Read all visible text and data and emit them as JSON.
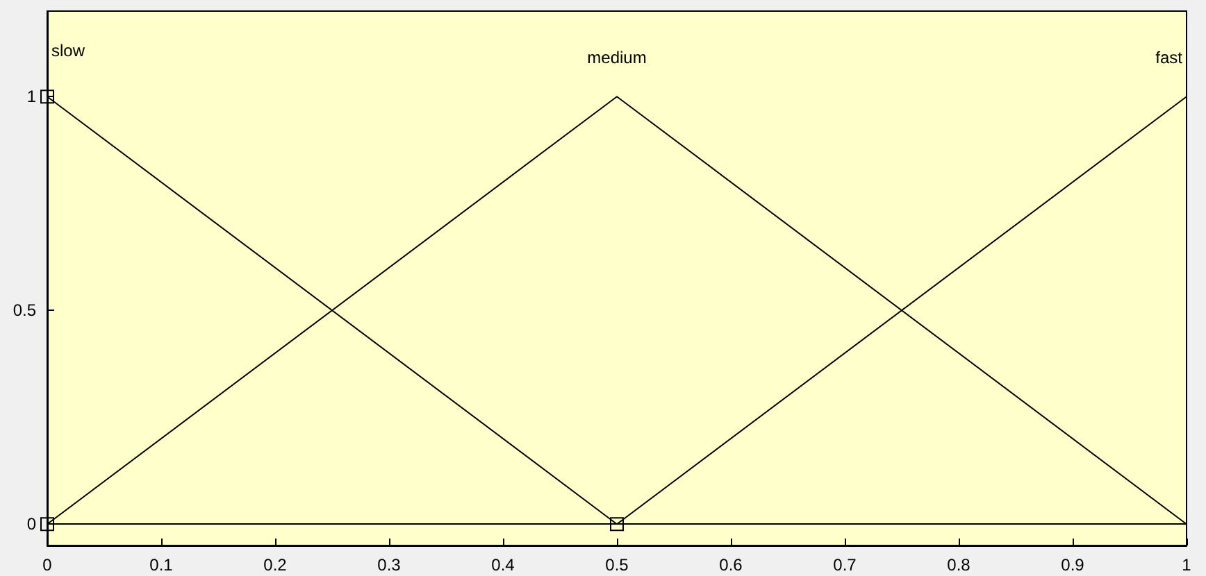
{
  "chart_data": {
    "type": "line",
    "xlim": [
      0,
      1
    ],
    "ylim": [
      -0.05,
      1.2
    ],
    "xticks": [
      0,
      0.1,
      0.2,
      0.3,
      0.4,
      0.5,
      0.6,
      0.7,
      0.8,
      0.9,
      1
    ],
    "yticks": [
      0,
      0.5,
      1
    ],
    "series": [
      {
        "name": "slow",
        "color": "#000000",
        "x": [
          0,
          0,
          0.5
        ],
        "values": [
          0,
          1,
          0
        ],
        "marker": "square"
      },
      {
        "name": "medium",
        "color": "#000000",
        "x": [
          0,
          0.5,
          1
        ],
        "values": [
          0,
          1,
          0
        ],
        "marker": "none"
      },
      {
        "name": "fast",
        "color": "#000000",
        "x": [
          0.5,
          1
        ],
        "values": [
          0,
          1
        ],
        "marker": "none"
      }
    ],
    "ref_lines": [
      {
        "axis": "y",
        "value": 0,
        "color": "#000000"
      }
    ],
    "grid": false,
    "legend": false,
    "line_style": "solid"
  }
}
